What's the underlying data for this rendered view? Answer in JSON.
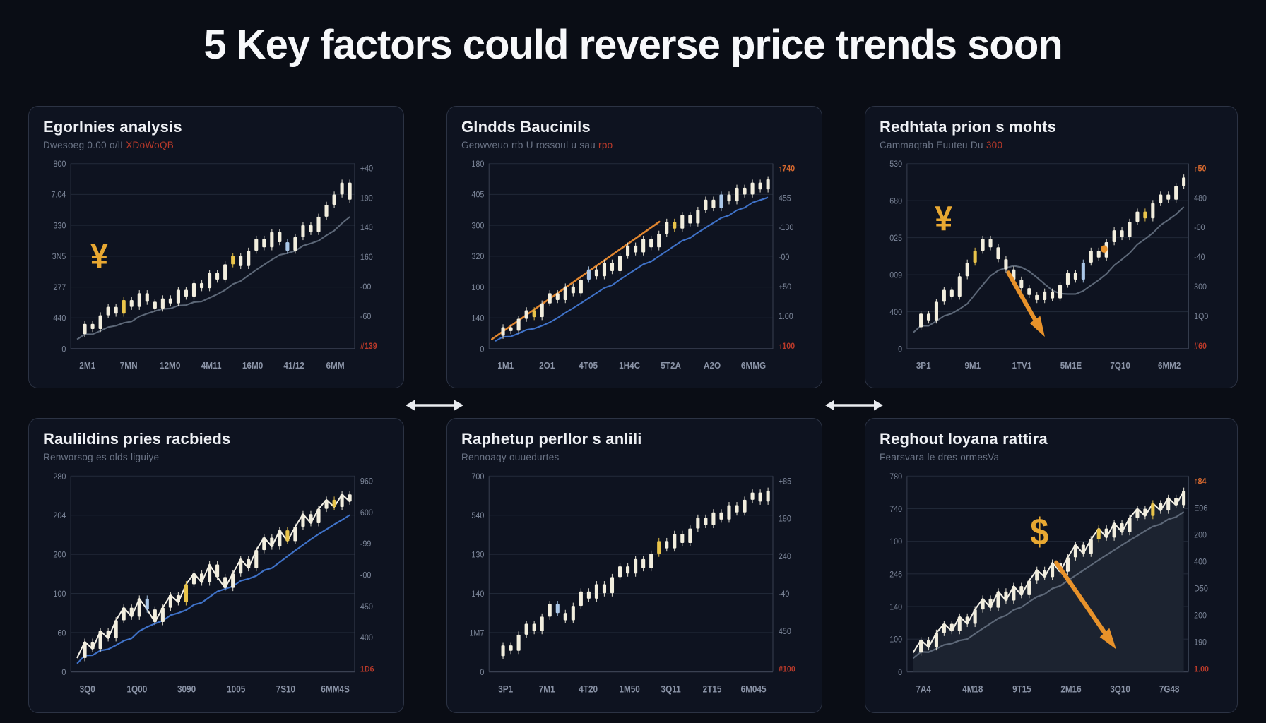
{
  "page": {
    "title": "5 Key factors could reverse price trends soon"
  },
  "theme": {
    "background": "#0a0d15",
    "card_bg": "#0e1320",
    "card_border": "#2c3344",
    "grid_line": "#202837",
    "axis_line": "#3a4152",
    "tick_color": "#7c8699",
    "x_tick_color": "#8a93a6",
    "candle": "#f2eede",
    "candle_yellow": "#e9c44a",
    "candle_blue": "#aac7e8",
    "ma_grey": "#5d6878",
    "ma_blue": "#3f72c8",
    "trend_orange": "#e0862f",
    "arrow_orange": "#e8922a",
    "symbol_gold": "#e8a832",
    "red_label": "#bb3a2a",
    "orange_label": "#d96a2f",
    "area_fill": "#1c2330",
    "line_overlay": "#f3f0e6",
    "connector_arrow": "#e9ebef"
  },
  "chart_data": [
    {
      "type": "candlestick",
      "title": "Egorlnies analysis",
      "subtitle": "Dwesoeg 0.00 o/lI ",
      "subtitle_red": "XDoWoQB",
      "left_ticks": [
        "800",
        "7,04",
        "330",
        "3N5",
        "277",
        "440",
        "0"
      ],
      "right_ticks": [
        {
          "t": "+40"
        },
        {
          "t": "190"
        },
        {
          "t": "140"
        },
        {
          "t": "160"
        },
        {
          "t": "-00"
        },
        {
          "t": "-60"
        },
        {
          "t": "#139",
          "c": "red"
        }
      ],
      "x_ticks": [
        "2M1",
        "7MN",
        "12M0",
        "4M11",
        "16M0",
        "41/12",
        "6MM"
      ],
      "values": [
        0.06,
        0.12,
        0.09,
        0.17,
        0.22,
        0.18,
        0.26,
        0.22,
        0.3,
        0.25,
        0.21,
        0.27,
        0.24,
        0.32,
        0.28,
        0.36,
        0.33,
        0.42,
        0.38,
        0.47,
        0.52,
        0.46,
        0.55,
        0.62,
        0.57,
        0.66,
        0.6,
        0.55,
        0.63,
        0.7,
        0.66,
        0.75,
        0.82,
        0.88,
        0.95,
        0.85
      ],
      "accents": {
        "6": "yellow",
        "20": "yellow",
        "27": "blue"
      },
      "ma": "grey",
      "line": false,
      "area": false,
      "trendline": null,
      "decorations": [
        {
          "kind": "symbol",
          "name": "yen-icon",
          "text": "¥",
          "x": 0.1,
          "y": 0.45,
          "size": 46
        }
      ]
    },
    {
      "type": "candlestick",
      "title": "Glndds Baucinils",
      "subtitle": "Geowveuo rtb U rossoul u sau ",
      "subtitle_red": "rpo",
      "left_ticks": [
        "180",
        "405",
        "300",
        "320",
        "100",
        "140",
        "0"
      ],
      "right_ticks": [
        {
          "t": "↑740",
          "c": "orange"
        },
        {
          "t": "455"
        },
        {
          "t": "-130"
        },
        {
          "t": "-00"
        },
        {
          "t": "+50"
        },
        {
          "t": "1.00"
        },
        {
          "t": "↑100",
          "c": "red"
        }
      ],
      "x_ticks": [
        "1M1",
        "2O1",
        "4T05",
        "1H4C",
        "5T2A",
        "A2O",
        "6MMG"
      ],
      "values": [
        0.05,
        0.1,
        0.08,
        0.15,
        0.2,
        0.16,
        0.24,
        0.3,
        0.26,
        0.34,
        0.3,
        0.38,
        0.44,
        0.4,
        0.48,
        0.43,
        0.52,
        0.58,
        0.54,
        0.62,
        0.57,
        0.65,
        0.72,
        0.68,
        0.76,
        0.71,
        0.79,
        0.85,
        0.8,
        0.88,
        0.84,
        0.92,
        0.88,
        0.95,
        0.91,
        0.97
      ],
      "accents": {
        "5": "yellow",
        "23": "yellow",
        "12": "blue",
        "29": "blue"
      },
      "ma": "blue",
      "line": false,
      "area": false,
      "trendline": {
        "x1": 0.01,
        "y1": 0.03,
        "x2": 0.6,
        "y2": 0.72
      },
      "decorations": []
    },
    {
      "type": "candlestick",
      "title": "Redhtata prion s mohts",
      "subtitle": "Cammaqtab Euuteu Du ",
      "subtitle_red": "300",
      "left_ticks": [
        "530",
        "680",
        "025",
        "009",
        "400",
        "0"
      ],
      "right_ticks": [
        {
          "t": "↑50",
          "c": "orange"
        },
        {
          "t": "480"
        },
        {
          "t": "-00"
        },
        {
          "t": "-40"
        },
        {
          "t": "300"
        },
        {
          "t": "1Q0"
        },
        {
          "t": "#60",
          "c": "red"
        }
      ],
      "x_ticks": [
        "3P1",
        "9M1",
        "1TV1",
        "5M1E",
        "7Q10",
        "6MM2"
      ],
      "values": [
        0.1,
        0.18,
        0.14,
        0.25,
        0.32,
        0.28,
        0.4,
        0.48,
        0.55,
        0.62,
        0.57,
        0.5,
        0.44,
        0.38,
        0.33,
        0.29,
        0.26,
        0.31,
        0.27,
        0.35,
        0.42,
        0.38,
        0.48,
        0.55,
        0.51,
        0.6,
        0.67,
        0.63,
        0.72,
        0.78,
        0.74,
        0.83,
        0.88,
        0.85,
        0.93,
        0.98
      ],
      "accents": {
        "8": "yellow",
        "30": "yellow",
        "22": "blue"
      },
      "ma": "grey",
      "line": false,
      "area": false,
      "trendline": null,
      "decorations": [
        {
          "kind": "symbol",
          "name": "yen-icon",
          "text": "¥",
          "x": 0.13,
          "y": 0.67,
          "size": 46
        },
        {
          "kind": "arrow",
          "name": "trend-down-arrow-icon",
          "x1": 0.36,
          "y1": 0.42,
          "x2": 0.47,
          "y2": 0.1
        },
        {
          "kind": "dot",
          "name": "highlight-dot",
          "x": 0.7,
          "y": 0.56
        }
      ]
    },
    {
      "type": "candlestick",
      "title": "Raulildins pries racbieds",
      "subtitle": "Renworsog es olds liguiye",
      "subtitle_red": "",
      "left_ticks": [
        "280",
        "204",
        "200",
        "100",
        "60",
        "0"
      ],
      "right_ticks": [
        {
          "t": "960"
        },
        {
          "t": "600"
        },
        {
          "t": "-99"
        },
        {
          "t": "-00"
        },
        {
          "t": "450"
        },
        {
          "t": "400"
        },
        {
          "t": "1D6",
          "c": "red"
        }
      ],
      "x_ticks": [
        "3Q0",
        "1Q00",
        "3090",
        "1005",
        "7S10",
        "6MM4S"
      ],
      "values": [
        0.05,
        0.14,
        0.1,
        0.2,
        0.16,
        0.26,
        0.33,
        0.28,
        0.38,
        0.32,
        0.25,
        0.33,
        0.4,
        0.36,
        0.46,
        0.52,
        0.47,
        0.57,
        0.5,
        0.44,
        0.52,
        0.6,
        0.55,
        0.65,
        0.72,
        0.67,
        0.76,
        0.7,
        0.78,
        0.85,
        0.8,
        0.88,
        0.93,
        0.89,
        0.96,
        0.92
      ],
      "accents": {
        "14": "yellow",
        "27": "yellow",
        "33": "yellow",
        "9": "blue"
      },
      "ma": "blue",
      "line": true,
      "area": false,
      "trendline": null,
      "decorations": []
    },
    {
      "type": "candlestick",
      "title": "Raphetup perllor s anlili",
      "subtitle": "Rennoaqy ouuedurtes",
      "subtitle_red": "",
      "left_ticks": [
        "700",
        "540",
        "130",
        "140",
        "1M7",
        "0"
      ],
      "right_ticks": [
        {
          "t": "+85"
        },
        {
          "t": "180"
        },
        {
          "t": "240"
        },
        {
          "t": "-40"
        },
        {
          "t": "450"
        },
        {
          "t": "#100",
          "c": "red"
        }
      ],
      "x_ticks": [
        "3P1",
        "7M1",
        "4T20",
        "1M50",
        "3Q11",
        "2T15",
        "6M045"
      ],
      "values": [
        0.06,
        0.12,
        0.09,
        0.18,
        0.24,
        0.2,
        0.28,
        0.35,
        0.3,
        0.26,
        0.34,
        0.42,
        0.38,
        0.46,
        0.41,
        0.5,
        0.56,
        0.52,
        0.6,
        0.55,
        0.63,
        0.7,
        0.66,
        0.74,
        0.69,
        0.77,
        0.83,
        0.79,
        0.86,
        0.82,
        0.9,
        0.86,
        0.93,
        0.97,
        0.92,
        0.98
      ],
      "accents": {
        "21": "yellow",
        "8": "blue"
      },
      "ma": null,
      "line": false,
      "area": false,
      "trendline": null,
      "decorations": []
    },
    {
      "type": "candlestick",
      "title": "Reghout loyana rattira",
      "subtitle": "Fearsvara le dres ormesVa",
      "subtitle_red": "",
      "left_ticks": [
        "780",
        "740",
        "100",
        "246",
        "140",
        "100",
        "0"
      ],
      "right_ticks": [
        {
          "t": "↑84",
          "c": "orange"
        },
        {
          "t": "E06"
        },
        {
          "t": "200"
        },
        {
          "t": "400"
        },
        {
          "t": "D50"
        },
        {
          "t": "200"
        },
        {
          "t": "190"
        },
        {
          "t": "1.00",
          "c": "red"
        }
      ],
      "x_ticks": [
        "7A4",
        "4M18",
        "9T15",
        "2M16",
        "3Q10",
        "7G48"
      ],
      "values": [
        0.08,
        0.15,
        0.11,
        0.19,
        0.24,
        0.2,
        0.28,
        0.24,
        0.32,
        0.38,
        0.33,
        0.42,
        0.37,
        0.45,
        0.4,
        0.48,
        0.54,
        0.5,
        0.58,
        0.53,
        0.61,
        0.68,
        0.63,
        0.71,
        0.77,
        0.72,
        0.8,
        0.75,
        0.83,
        0.88,
        0.84,
        0.91,
        0.87,
        0.94,
        0.9,
        0.98
      ],
      "accents": {
        "24": "yellow",
        "31": "yellow"
      },
      "ma": "grey",
      "line": true,
      "area": true,
      "trendline": null,
      "decorations": [
        {
          "kind": "symbol",
          "name": "dollar-icon",
          "text": "$",
          "x": 0.47,
          "y": 0.68,
          "size": 48
        },
        {
          "kind": "arrow",
          "name": "trend-down-arrow-icon",
          "x1": 0.53,
          "y1": 0.58,
          "x2": 0.72,
          "y2": 0.15
        }
      ]
    }
  ]
}
